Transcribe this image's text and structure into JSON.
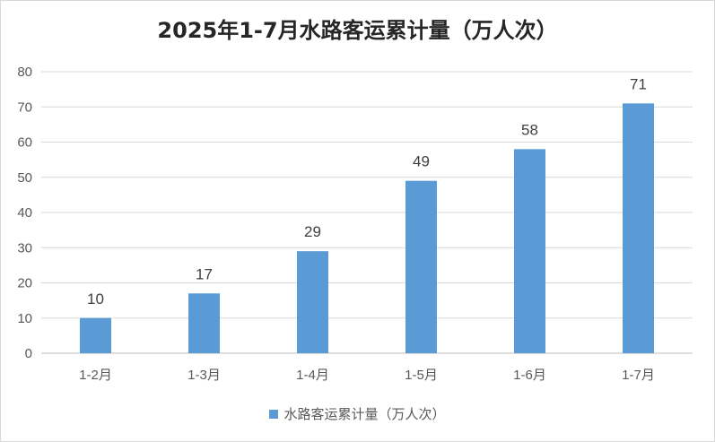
{
  "chart_data": {
    "type": "bar",
    "title": "2025年1-7月水路客运累计量（万人次）",
    "categories": [
      "1-2月",
      "1-3月",
      "1-4月",
      "1-5月",
      "1-6月",
      "1-7月"
    ],
    "series": [
      {
        "name": "水路客运累计量（万人次）",
        "values": [
          10,
          17,
          29,
          49,
          58,
          71
        ]
      }
    ],
    "ylim": [
      0,
      80
    ],
    "yticks": [
      0,
      10,
      20,
      30,
      40,
      50,
      60,
      70,
      80
    ],
    "grid": true,
    "legend_position": "bottom",
    "bar_color": "#5b9bd5",
    "data_labels": true
  }
}
